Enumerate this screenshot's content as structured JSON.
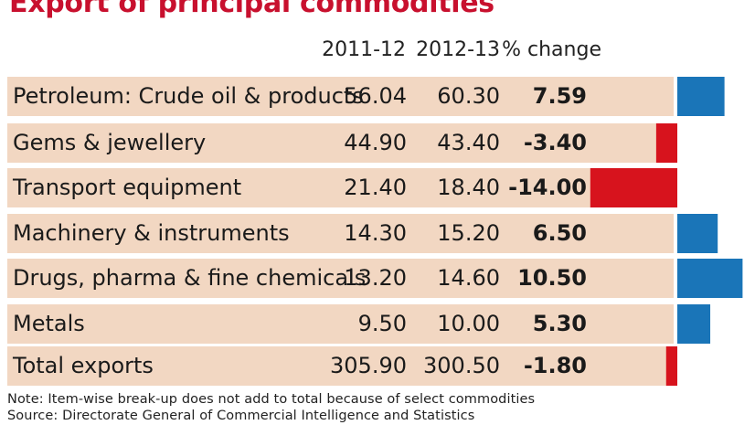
{
  "title": "Export of principal commodities",
  "headers": {
    "y1": "2011-12",
    "y2": "2012-13",
    "change": "% change"
  },
  "colors": {
    "positive": "#1a75b8",
    "negative": "#d7131d",
    "row_band": "#f2d7c2"
  },
  "chart_data": {
    "type": "table",
    "columns": [
      "2011-12",
      "2012-13",
      "% change"
    ],
    "rows": [
      {
        "name": "Petroleum: Crude oil & products",
        "y1": "56.04",
        "y2": "60.30",
        "change": "7.59"
      },
      {
        "name": "Gems & jewellery",
        "y1": "44.90",
        "y2": "43.40",
        "change": "-3.40"
      },
      {
        "name": "Transport equipment",
        "y1": "21.40",
        "y2": "18.40",
        "change": "-14.00"
      },
      {
        "name": "Machinery & instruments",
        "y1": "14.30",
        "y2": "15.20",
        "change": "6.50"
      },
      {
        "name": "Drugs, pharma & fine chemicals",
        "y1": "13.20",
        "y2": "14.60",
        "change": "10.50"
      },
      {
        "name": "Metals",
        "y1": "9.50",
        "y2": "10.00",
        "change": "5.30"
      },
      {
        "name": "Total exports",
        "y1": "305.90",
        "y2": "300.50",
        "change": "-1.80"
      }
    ]
  },
  "footer": {
    "note": "Note: Item-wise break-up does not add to total because of select commodities",
    "source": "Source: Directorate General of Commercial Intelligence and Statistics"
  }
}
